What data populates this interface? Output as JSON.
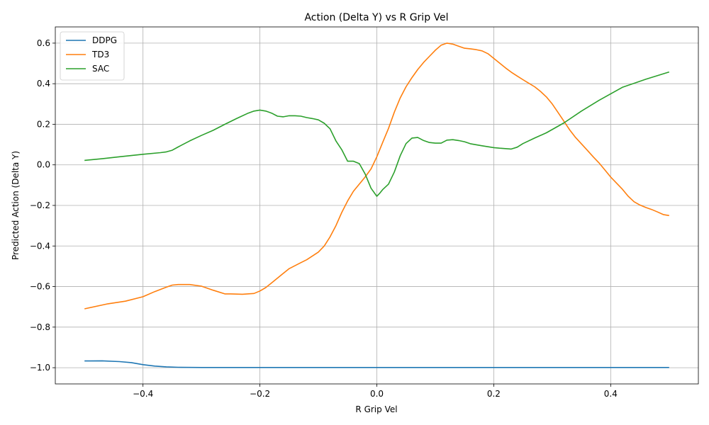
{
  "chart_data": {
    "type": "line",
    "title": "Action (Delta Y) vs R Grip Vel",
    "xlabel": "R Grip Vel",
    "ylabel": "Predicted Action (Delta Y)",
    "xlim": [
      -0.55,
      0.55
    ],
    "ylim": [
      -1.08,
      0.68
    ],
    "xticks": [
      -0.4,
      -0.2,
      0.0,
      0.2,
      0.4
    ],
    "xtick_labels": [
      "−0.4",
      "−0.2",
      "0.0",
      "0.2",
      "0.4"
    ],
    "yticks": [
      -1.0,
      -0.8,
      -0.6,
      -0.4,
      -0.2,
      0.0,
      0.2,
      0.4,
      0.6
    ],
    "ytick_labels": [
      "−1.0",
      "−0.8",
      "−0.6",
      "−0.4",
      "−0.2",
      "0.0",
      "0.2",
      "0.4",
      "0.6"
    ],
    "grid": true,
    "legend_position": "top-left",
    "series": [
      {
        "name": "DDPG",
        "color": "#1f77b4",
        "x": [
          -0.5,
          -0.47,
          -0.44,
          -0.42,
          -0.4,
          -0.38,
          -0.36,
          -0.34,
          -0.3,
          -0.2,
          -0.1,
          0.0,
          0.1,
          0.2,
          0.3,
          0.4,
          0.5
        ],
        "y": [
          -0.967,
          -0.966,
          -0.97,
          -0.975,
          -0.985,
          -0.992,
          -0.996,
          -0.998,
          -0.999,
          -0.999,
          -0.999,
          -0.999,
          -0.999,
          -0.999,
          -0.999,
          -0.999,
          -0.999
        ]
      },
      {
        "name": "TD3",
        "color": "#ff7f0e",
        "x": [
          -0.5,
          -0.46,
          -0.43,
          -0.4,
          -0.38,
          -0.36,
          -0.35,
          -0.34,
          -0.32,
          -0.3,
          -0.28,
          -0.26,
          -0.25,
          -0.23,
          -0.21,
          -0.2,
          -0.19,
          -0.18,
          -0.16,
          -0.15,
          -0.13,
          -0.12,
          -0.1,
          -0.09,
          -0.08,
          -0.07,
          -0.06,
          -0.05,
          -0.04,
          -0.03,
          -0.02,
          -0.01,
          0.0,
          0.01,
          0.02,
          0.03,
          0.04,
          0.05,
          0.06,
          0.07,
          0.08,
          0.09,
          0.1,
          0.11,
          0.12,
          0.13,
          0.14,
          0.15,
          0.16,
          0.17,
          0.18,
          0.19,
          0.2,
          0.22,
          0.23,
          0.24,
          0.25,
          0.26,
          0.27,
          0.28,
          0.29,
          0.3,
          0.31,
          0.32,
          0.33,
          0.34,
          0.36,
          0.37,
          0.38,
          0.39,
          0.4,
          0.42,
          0.43,
          0.44,
          0.45,
          0.46,
          0.47,
          0.48,
          0.49,
          0.5
        ],
        "y": [
          -0.71,
          -0.685,
          -0.672,
          -0.65,
          -0.625,
          -0.603,
          -0.593,
          -0.59,
          -0.59,
          -0.598,
          -0.618,
          -0.636,
          -0.636,
          -0.638,
          -0.634,
          -0.622,
          -0.605,
          -0.582,
          -0.535,
          -0.512,
          -0.482,
          -0.468,
          -0.43,
          -0.4,
          -0.355,
          -0.3,
          -0.235,
          -0.178,
          -0.13,
          -0.095,
          -0.06,
          -0.02,
          0.04,
          0.11,
          0.18,
          0.26,
          0.33,
          0.385,
          0.43,
          0.47,
          0.505,
          0.535,
          0.565,
          0.59,
          0.6,
          0.595,
          0.585,
          0.575,
          0.572,
          0.568,
          0.562,
          0.548,
          0.525,
          0.478,
          0.457,
          0.438,
          0.42,
          0.402,
          0.385,
          0.362,
          0.335,
          0.3,
          0.258,
          0.215,
          0.172,
          0.135,
          0.072,
          0.04,
          0.01,
          -0.025,
          -0.06,
          -0.12,
          -0.155,
          -0.182,
          -0.198,
          -0.21,
          -0.22,
          -0.232,
          -0.245,
          -0.25
        ]
      },
      {
        "name": "SAC",
        "color": "#2ca02c",
        "x": [
          -0.5,
          -0.47,
          -0.44,
          -0.42,
          -0.4,
          -0.37,
          -0.36,
          -0.35,
          -0.34,
          -0.32,
          -0.3,
          -0.28,
          -0.26,
          -0.24,
          -0.22,
          -0.21,
          -0.2,
          -0.19,
          -0.18,
          -0.17,
          -0.16,
          -0.15,
          -0.14,
          -0.13,
          -0.12,
          -0.11,
          -0.1,
          -0.09,
          -0.08,
          -0.07,
          -0.06,
          -0.05,
          -0.04,
          -0.03,
          -0.02,
          -0.01,
          0.0,
          0.005,
          0.01,
          0.02,
          0.03,
          0.04,
          0.05,
          0.06,
          0.07,
          0.08,
          0.09,
          0.1,
          0.11,
          0.12,
          0.13,
          0.14,
          0.15,
          0.16,
          0.18,
          0.2,
          0.21,
          0.23,
          0.24,
          0.25,
          0.27,
          0.29,
          0.32,
          0.35,
          0.38,
          0.42,
          0.46,
          0.5
        ],
        "y": [
          0.022,
          0.03,
          0.04,
          0.046,
          0.052,
          0.06,
          0.064,
          0.072,
          0.088,
          0.118,
          0.145,
          0.17,
          0.2,
          0.228,
          0.255,
          0.265,
          0.27,
          0.265,
          0.255,
          0.24,
          0.237,
          0.242,
          0.242,
          0.24,
          0.233,
          0.228,
          0.222,
          0.205,
          0.178,
          0.118,
          0.075,
          0.018,
          0.018,
          0.006,
          -0.045,
          -0.115,
          -0.155,
          -0.14,
          -0.122,
          -0.095,
          -0.035,
          0.045,
          0.105,
          0.132,
          0.135,
          0.12,
          0.11,
          0.107,
          0.107,
          0.122,
          0.124,
          0.12,
          0.114,
          0.104,
          0.094,
          0.085,
          0.082,
          0.078,
          0.087,
          0.105,
          0.132,
          0.158,
          0.207,
          0.265,
          0.318,
          0.382,
          0.422,
          0.458
        ]
      }
    ]
  }
}
